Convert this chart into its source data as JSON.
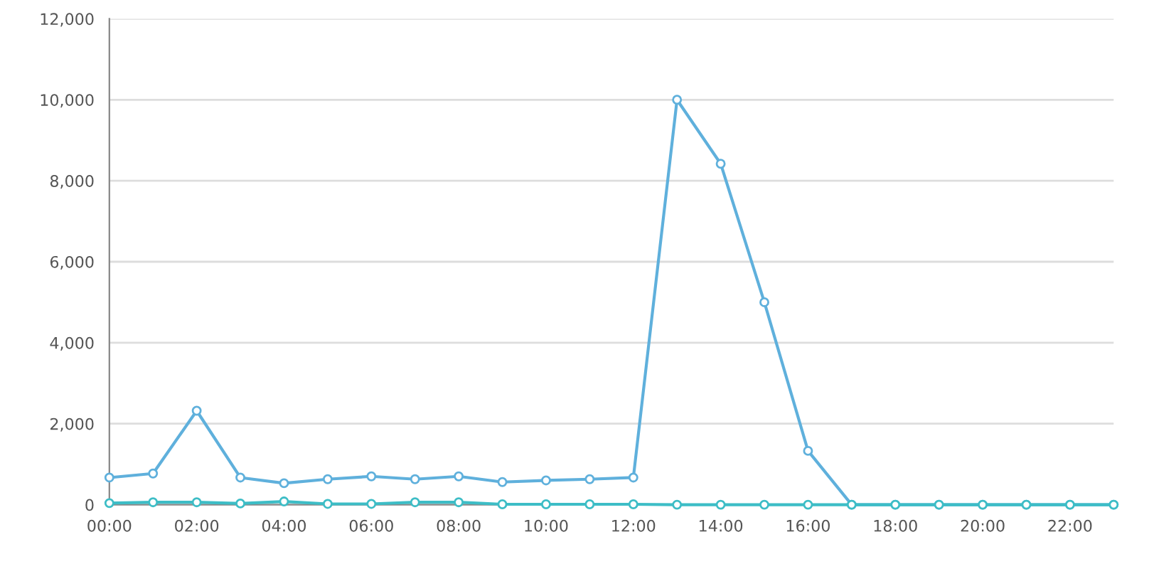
{
  "chart_data": {
    "type": "line",
    "x": [
      0,
      1,
      2,
      3,
      4,
      5,
      6,
      7,
      8,
      9,
      10,
      11,
      12,
      13,
      14,
      15,
      16,
      17,
      18,
      19,
      20,
      21,
      22,
      23
    ],
    "series": [
      {
        "color": "#5fb0dc",
        "values": [
          670,
          770,
          2320,
          670,
          530,
          630,
          700,
          630,
          700,
          560,
          600,
          630,
          670,
          10000,
          8420,
          5000,
          1330,
          0,
          0,
          0,
          0,
          0,
          0,
          0
        ]
      },
      {
        "color": "#3dbdc6",
        "values": [
          40,
          60,
          60,
          30,
          80,
          20,
          20,
          60,
          60,
          10,
          10,
          10,
          10,
          0,
          0,
          0,
          0,
          0,
          0,
          0,
          0,
          0,
          0,
          0
        ]
      }
    ],
    "xlim": [
      0,
      23
    ],
    "xticks": [
      {
        "value": 0,
        "label": "00:00"
      },
      {
        "value": 2,
        "label": "02:00"
      },
      {
        "value": 4,
        "label": "04:00"
      },
      {
        "value": 6,
        "label": "06:00"
      },
      {
        "value": 8,
        "label": "08:00"
      },
      {
        "value": 10,
        "label": "10:00"
      },
      {
        "value": 12,
        "label": "12:00"
      },
      {
        "value": 14,
        "label": "14:00"
      },
      {
        "value": 16,
        "label": "16:00"
      },
      {
        "value": 18,
        "label": "18:00"
      },
      {
        "value": 20,
        "label": "20:00"
      },
      {
        "value": 22,
        "label": "22:00"
      }
    ],
    "ylim": [
      0,
      12000
    ],
    "yticks": [
      {
        "value": 0,
        "label": "0"
      },
      {
        "value": 2000,
        "label": "2,000"
      },
      {
        "value": 4000,
        "label": "4,000"
      },
      {
        "value": 6000,
        "label": "6,000"
      },
      {
        "value": 8000,
        "label": "8,000"
      },
      {
        "value": 10000,
        "label": "10,000"
      },
      {
        "value": 12000,
        "label": "12,000"
      }
    ],
    "grid": "y",
    "marker": "circle",
    "line_style": "solid"
  }
}
